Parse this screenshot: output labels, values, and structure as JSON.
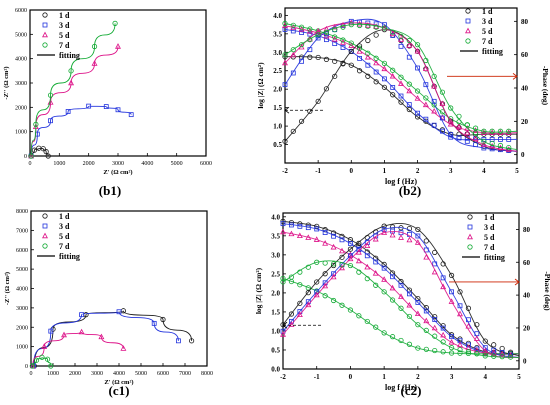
{
  "colors": {
    "d1": "#1a1a1a",
    "d3": "#2233dd",
    "d5": "#dd1188",
    "d7": "#11aa33",
    "fit": "#000000",
    "arrow": "#cc2200"
  },
  "chart_data": [
    {
      "id": "b1",
      "type": "scatter",
      "caption": "(b1)",
      "xlabel": "Z' (Ω cm²)",
      "ylabel": "-Z'' (Ω cm²)",
      "xlim": [
        0,
        6000
      ],
      "ylim": [
        0,
        6000
      ],
      "xticks": [
        "0",
        "1000",
        "2000",
        "3000",
        "4000",
        "5000",
        "6000"
      ],
      "yticks": [
        "0",
        "1000",
        "2000",
        "3000",
        "4000",
        "5000",
        "6000"
      ],
      "legend": [
        "1 d",
        "3 d",
        "5 d",
        "7 d",
        "fitting"
      ],
      "series": [
        {
          "name": "1 d",
          "points": [
            [
              30,
              0
            ],
            [
              150,
              240
            ],
            [
              300,
              320
            ],
            [
              450,
              300
            ],
            [
              550,
              180
            ],
            [
              620,
              0
            ]
          ]
        },
        {
          "name": "3 d",
          "points": [
            [
              40,
              0
            ],
            [
              250,
              900
            ],
            [
              700,
              1450
            ],
            [
              1300,
              1830
            ],
            [
              2000,
              2050
            ],
            [
              2600,
              2030
            ],
            [
              3000,
              1900
            ],
            [
              3450,
              1700
            ]
          ]
        },
        {
          "name": "5 d",
          "points": [
            [
              40,
              0
            ],
            [
              200,
              1200
            ],
            [
              700,
              2200
            ],
            [
              1400,
              3000
            ],
            [
              2200,
              3800
            ],
            [
              3000,
              4500
            ]
          ]
        },
        {
          "name": "7 d",
          "points": [
            [
              40,
              0
            ],
            [
              200,
              1300
            ],
            [
              700,
              2500
            ],
            [
              1400,
              3500
            ],
            [
              2200,
              4500
            ],
            [
              2900,
              5450
            ]
          ]
        }
      ]
    },
    {
      "id": "b2",
      "type": "line",
      "caption": "(b2)",
      "xlabel": "log f (Hz)",
      "ylabel": "log |Z| (Ω cm²)",
      "y2label": "-Phase (deg)",
      "xlim": [
        -2,
        5
      ],
      "ylim": [
        0,
        4.2
      ],
      "y2lim": [
        -5,
        88
      ],
      "xticks": [
        "-2",
        "-1",
        "0",
        "1",
        "2",
        "3",
        "4",
        "5"
      ],
      "yticks": [
        "0.5",
        "1.0",
        "1.5",
        "2.0",
        "2.5",
        "3.0",
        "3.5",
        "4.0"
      ],
      "y2ticks": [
        "0",
        "20",
        "40",
        "60",
        "80"
      ],
      "legend": [
        "1 d",
        "3 d",
        "5 d",
        "7 d",
        "fitting"
      ],
      "series_logZ": [
        {
          "name": "1 d",
          "x": [
            -2,
            -1,
            0,
            1,
            2,
            3,
            4,
            5
          ],
          "y": [
            2.88,
            2.86,
            2.65,
            2.05,
            1.25,
            0.78,
            0.78,
            0.78
          ]
        },
        {
          "name": "3 d",
          "x": [
            -2,
            -1,
            0,
            1,
            2,
            3,
            4,
            5
          ],
          "y": [
            3.62,
            3.45,
            3.02,
            2.28,
            1.35,
            0.7,
            0.64,
            0.64
          ]
        },
        {
          "name": "5 d",
          "x": [
            -2,
            -1,
            0,
            1,
            2,
            3,
            4,
            5
          ],
          "y": [
            3.72,
            3.52,
            3.18,
            2.55,
            1.75,
            1.05,
            0.82,
            0.82
          ]
        },
        {
          "name": "7 d",
          "x": [
            -2,
            -1,
            0,
            1,
            2,
            3,
            4,
            5
          ],
          "y": [
            3.78,
            3.58,
            3.25,
            2.7,
            1.95,
            1.2,
            0.86,
            0.86
          ]
        }
      ],
      "series_phase": [
        {
          "name": "1 d",
          "x": [
            -2,
            -1,
            0,
            1,
            2,
            3,
            4,
            5
          ],
          "y": [
            8,
            32,
            62,
            75,
            62,
            20,
            5,
            2
          ]
        },
        {
          "name": "3 d",
          "x": [
            -2,
            -1,
            0,
            1,
            2,
            3,
            4,
            5
          ],
          "y": [
            42,
            70,
            80,
            78,
            52,
            12,
            4,
            2
          ]
        },
        {
          "name": "5 d",
          "x": [
            -2,
            -1,
            0,
            1,
            2,
            3,
            4,
            5
          ],
          "y": [
            55,
            74,
            79,
            76,
            62,
            20,
            6,
            2
          ]
        },
        {
          "name": "7 d",
          "x": [
            -2,
            -1,
            0,
            1,
            2,
            3,
            4,
            5
          ],
          "y": [
            60,
            72,
            78,
            76,
            66,
            28,
            8,
            3
          ]
        }
      ]
    },
    {
      "id": "c1",
      "type": "scatter",
      "caption": "(c1)",
      "xlabel": "Z' (Ω cm²)",
      "ylabel": "-Z'' (Ω cm²)",
      "xlim": [
        0,
        8000
      ],
      "ylim": [
        0,
        8000
      ],
      "xticks": [
        "0",
        "1000",
        "2000",
        "3000",
        "4000",
        "5000",
        "6000",
        "7000",
        "8000"
      ],
      "yticks": [
        "0",
        "1000",
        "2000",
        "3000",
        "4000",
        "5000",
        "6000",
        "7000",
        "8000"
      ],
      "legend": [
        "1 d",
        "3 d",
        "5 d",
        "7 d",
        "fitting"
      ],
      "series": [
        {
          "name": "1 d",
          "points": [
            [
              150,
              0
            ],
            [
              1000,
              1900
            ],
            [
              2500,
              2650
            ],
            [
              4200,
              2850
            ],
            [
              6000,
              2400
            ],
            [
              7300,
              1300
            ]
          ]
        },
        {
          "name": "3 d",
          "points": [
            [
              120,
              0
            ],
            [
              900,
              1800
            ],
            [
              2300,
              2650
            ],
            [
              4000,
              2800
            ],
            [
              5600,
              2200
            ],
            [
              6700,
              1300
            ]
          ]
        },
        {
          "name": "5 d",
          "points": [
            [
              80,
              0
            ],
            [
              600,
              1000
            ],
            [
              1500,
              1600
            ],
            [
              2300,
              1750
            ],
            [
              3200,
              1500
            ],
            [
              4200,
              900
            ]
          ]
        },
        {
          "name": "7 d",
          "points": [
            [
              60,
              0
            ],
            [
              250,
              300
            ],
            [
              500,
              450
            ],
            [
              750,
              350
            ],
            [
              900,
              0
            ]
          ]
        }
      ]
    },
    {
      "id": "c2",
      "type": "line",
      "caption": "(c2)",
      "xlabel": "log f (Hz)",
      "ylabel": "log |Z| (Ω cm²)",
      "y2label": "-Phase (deg)",
      "xlim": [
        -2,
        5
      ],
      "ylim": [
        0,
        4.1
      ],
      "y2lim": [
        -5,
        90
      ],
      "xticks": [
        "-2",
        "-1",
        "0",
        "1",
        "2",
        "3",
        "4",
        "5"
      ],
      "yticks": [
        "0.0",
        "0.5",
        "1.0",
        "1.5",
        "2.0",
        "2.5",
        "3.0",
        "3.5",
        "4.0"
      ],
      "y2ticks": [
        "0",
        "20",
        "40",
        "60",
        "80"
      ],
      "legend": [
        "1 d",
        "3 d",
        "5 d",
        "7 d",
        "fitting"
      ],
      "series_logZ": [
        {
          "name": "1 d",
          "x": [
            -2,
            -1,
            0,
            1,
            2,
            3,
            4,
            5
          ],
          "y": [
            3.88,
            3.75,
            3.4,
            2.75,
            1.85,
            0.9,
            0.45,
            0.4
          ]
        },
        {
          "name": "3 d",
          "x": [
            -2,
            -1,
            0,
            1,
            2,
            3,
            4,
            5
          ],
          "y": [
            3.82,
            3.68,
            3.3,
            2.65,
            1.75,
            0.85,
            0.42,
            0.4
          ]
        },
        {
          "name": "5 d",
          "x": [
            -2,
            -1,
            0,
            1,
            2,
            3,
            4,
            5
          ],
          "y": [
            3.6,
            3.4,
            3.0,
            2.35,
            1.45,
            0.7,
            0.42,
            0.4
          ]
        },
        {
          "name": "7 d",
          "x": [
            -2,
            -1,
            0,
            1,
            2,
            3,
            4,
            5
          ],
          "y": [
            2.38,
            2.05,
            1.55,
            0.95,
            0.55,
            0.42,
            0.4,
            0.4
          ]
        }
      ],
      "series_phase": [
        {
          "name": "1 d",
          "x": [
            -2,
            -1,
            0,
            1,
            2,
            3,
            4,
            5
          ],
          "y": [
            22,
            48,
            68,
            82,
            80,
            52,
            12,
            3
          ]
        },
        {
          "name": "3 d",
          "x": [
            -2,
            -1,
            0,
            1,
            2,
            3,
            4,
            5
          ],
          "y": [
            18,
            42,
            64,
            80,
            76,
            42,
            8,
            2
          ]
        },
        {
          "name": "5 d",
          "x": [
            -2,
            -1,
            0,
            1,
            2,
            3,
            4,
            5
          ],
          "y": [
            16,
            40,
            62,
            78,
            72,
            36,
            6,
            2
          ]
        },
        {
          "name": "7 d",
          "x": [
            -2,
            -1,
            0,
            1,
            2,
            3,
            4,
            5
          ],
          "y": [
            48,
            60,
            58,
            42,
            22,
            8,
            3,
            2
          ]
        }
      ]
    }
  ]
}
